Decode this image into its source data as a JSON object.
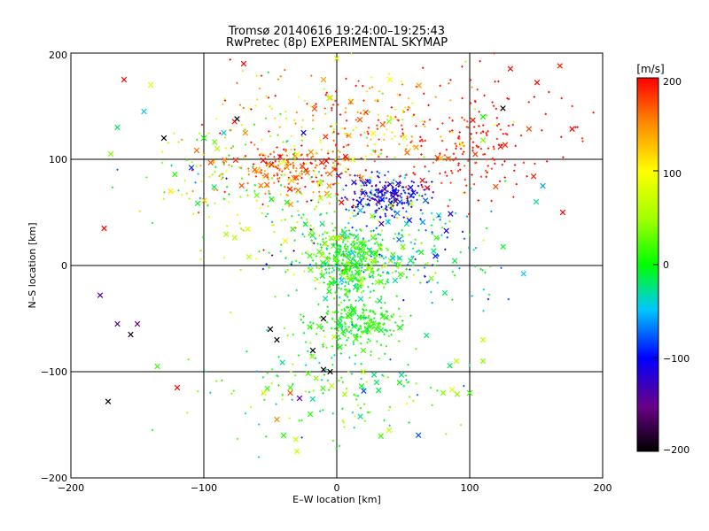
{
  "chart_data": {
    "type": "scatter",
    "title": "Tromsø 20140616 19:24:00–19:25:43",
    "subtitle": "RwPretec (8p) EXPERIMENTAL SKYMAP",
    "xlabel": "E–W location [km]",
    "ylabel": "N–S location [km]",
    "xlim": [
      -200,
      200
    ],
    "ylim": [
      -200,
      200
    ],
    "x_ticks": [
      "−200",
      "−100",
      "0",
      "100",
      "200"
    ],
    "y_ticks": [
      "−200",
      "−100",
      "0",
      "100",
      "200"
    ],
    "grid": true,
    "colorbar": {
      "unit": "[m/s]",
      "range": [
        -200,
        200
      ],
      "ticks": [
        "200",
        "100",
        "0",
        "−100",
        "−200"
      ]
    },
    "clusters": [
      {
        "cx": 10,
        "cy": 5,
        "sx": 15,
        "sy": 15,
        "vmean": 10,
        "vsd": 30,
        "n": 450
      },
      {
        "cx": 15,
        "cy": -55,
        "sx": 16,
        "sy": 12,
        "vmean": 5,
        "vsd": 15,
        "n": 220
      },
      {
        "cx": 35,
        "cy": 65,
        "sx": 16,
        "sy": 10,
        "vmean": -110,
        "vsd": 25,
        "n": 220
      },
      {
        "cx": -30,
        "cy": 90,
        "sx": 25,
        "sy": 12,
        "vmean": 170,
        "vsd": 25,
        "n": 180
      },
      {
        "cx": 100,
        "cy": 100,
        "sx": 22,
        "sy": 18,
        "vmean": 190,
        "vsd": 15,
        "n": 110
      },
      {
        "cx": 10,
        "cy": 135,
        "sx": 45,
        "sy": 25,
        "vmean": 140,
        "vsd": 60,
        "n": 260
      },
      {
        "cx": 0,
        "cy": -110,
        "sx": 45,
        "sy": 30,
        "vmean": 0,
        "vsd": 40,
        "n": 170
      },
      {
        "cx": 60,
        "cy": 15,
        "sx": 30,
        "sy": 25,
        "vmean": -30,
        "vsd": 45,
        "n": 160
      },
      {
        "cx": -60,
        "cy": 85,
        "sx": 40,
        "sy": 25,
        "vmean": 60,
        "vsd": 70,
        "n": 160
      },
      {
        "cx": 130,
        "cy": 140,
        "sx": 30,
        "sy": 30,
        "vmean": 200,
        "vsd": 10,
        "n": 70
      },
      {
        "cx": -20,
        "cy": 30,
        "sx": 35,
        "sy": 30,
        "vmean": 30,
        "vsd": 70,
        "n": 130
      }
    ],
    "outliers": [
      [
        -145,
        145,
        -50
      ],
      [
        -140,
        170,
        80
      ],
      [
        -130,
        120,
        -200
      ],
      [
        -125,
        70,
        110
      ],
      [
        -160,
        175,
        200
      ],
      [
        -170,
        105,
        40
      ],
      [
        -165,
        130,
        -20
      ],
      [
        -175,
        35,
        200
      ],
      [
        -120,
        -115,
        200
      ],
      [
        -165,
        -55,
        -140
      ],
      [
        -150,
        -55,
        -150
      ],
      [
        -155,
        -65,
        -190
      ],
      [
        -172,
        -128,
        -210
      ],
      [
        -178,
        -28,
        -140
      ],
      [
        -135,
        -95,
        20
      ],
      [
        -45,
        -70,
        -200
      ],
      [
        -50,
        -60,
        -200
      ],
      [
        -45,
        -145,
        150
      ],
      [
        -40,
        -160,
        10
      ],
      [
        -28,
        -125,
        -140
      ],
      [
        -18,
        -80,
        -200
      ],
      [
        -10,
        -50,
        -200
      ],
      [
        -5,
        -100,
        -200
      ],
      [
        -10,
        -98,
        -200
      ],
      [
        -35,
        -115,
        20
      ],
      [
        -35,
        -120,
        170
      ],
      [
        -20,
        -140,
        10
      ],
      [
        -30,
        -175,
        70
      ],
      [
        -55,
        -120,
        80
      ],
      [
        20,
        -100,
        60
      ],
      [
        30,
        -110,
        -20
      ],
      [
        20,
        -80,
        20
      ],
      [
        80,
        -120,
        40
      ],
      [
        100,
        -120,
        20
      ],
      [
        90,
        -90,
        60
      ],
      [
        110,
        -70,
        60
      ],
      [
        110,
        -90,
        40
      ],
      [
        150,
        60,
        -30
      ],
      [
        170,
        50,
        200
      ],
      [
        155,
        75,
        -60
      ],
      [
        125,
        148,
        -200
      ],
      [
        110,
        118,
        40
      ],
      [
        110,
        140,
        0
      ],
      [
        -75,
        138,
        -200
      ],
      [
        -70,
        190,
        200
      ],
      [
        -85,
        125,
        -40
      ],
      [
        -25,
        125,
        -100
      ],
      [
        0,
        195,
        80
      ],
      [
        -10,
        175,
        140
      ],
      [
        40,
        175,
        100
      ],
      [
        -90,
        110,
        60
      ],
      [
        -100,
        120,
        0
      ]
    ]
  }
}
